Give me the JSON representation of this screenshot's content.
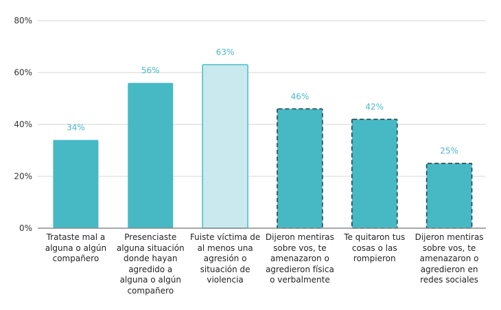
{
  "chart_data": {
    "type": "bar",
    "title": "",
    "xlabel": "",
    "ylabel": "",
    "ylim": [
      0,
      80
    ],
    "yticks": [
      0,
      20,
      40,
      60,
      80
    ],
    "ytick_labels": [
      "0%",
      "20%",
      "40%",
      "60%",
      "80%"
    ],
    "grid": true,
    "legend": "none",
    "categories": [
      "Trataste mal a alguna o algún compañero",
      "Presenciaste alguna situación donde hayan agredido a alguna o algún compañero",
      "Fuiste víctima de al menos una agresión o situación de violencia",
      "Dijeron mentiras sobre vos, te amenazaron o agredieron física o verbalmente",
      "Te quitaron tus cosas o las rompieron",
      "Dijeron mentiras sobre vos, te amenazaron o agredieron en redes sociales"
    ],
    "category_lines": [
      [
        "Trataste mal a",
        "alguna o algún",
        "compañero"
      ],
      [
        "Presenciaste",
        "alguna situación",
        "donde hayan",
        "agredido a",
        "alguna o algún",
        "compañero"
      ],
      [
        "Fuiste víctima de",
        "al menos una",
        "agresión o",
        "situación de",
        "violencia"
      ],
      [
        "Dijeron mentiras",
        "sobre vos, te",
        "amenazaron o",
        "agredieron física",
        "o verbalmente"
      ],
      [
        "Te quitaron tus",
        "cosas o las",
        "rompieron"
      ],
      [
        "Dijeron mentiras",
        "sobre vos, te",
        "amenazaron o",
        "agredieron en",
        "redes sociales"
      ]
    ],
    "values": [
      34,
      56,
      63,
      46,
      42,
      25
    ],
    "data_labels": [
      "34%",
      "56%",
      "63%",
      "46%",
      "42%",
      "25%"
    ],
    "bar_styles": [
      "solid",
      "solid",
      "light",
      "dashed",
      "dashed",
      "dashed"
    ],
    "colors": {
      "bar": "#46b9c5",
      "bar_light": "#c9e9ee",
      "bar_light_border": "#46b9c5",
      "dashed_border": "#1f3b40",
      "data_label": "#4bb9c6",
      "grid": "#e2e2e2",
      "axis": "#8c8c8c"
    }
  }
}
